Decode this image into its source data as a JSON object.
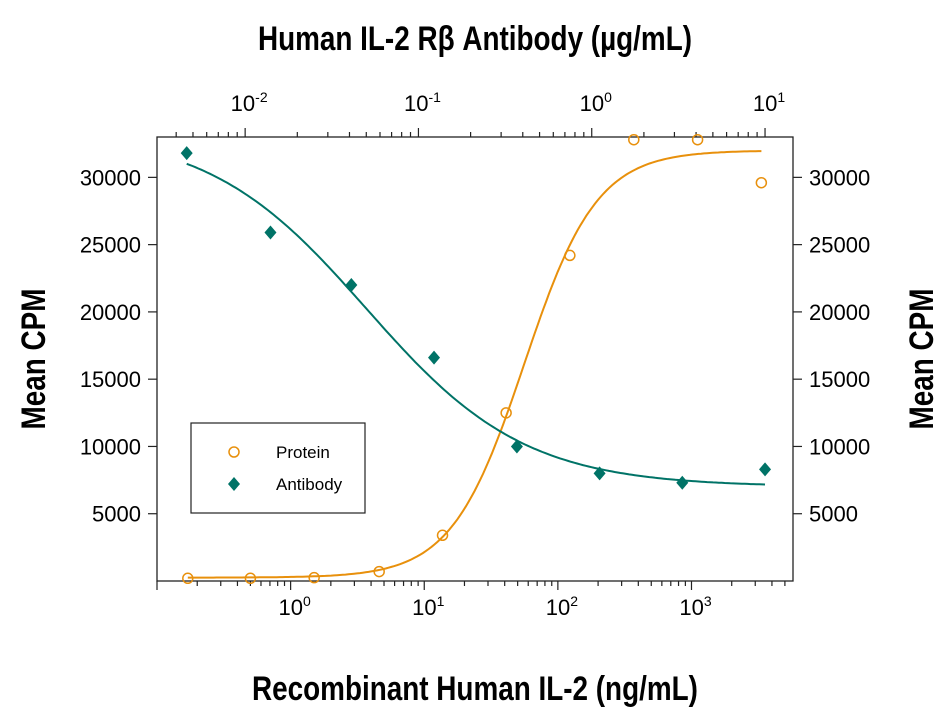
{
  "chart_data": {
    "type": "scatter",
    "title": "Human IL-2 Rβ Antibody (µg/mL)",
    "xlabel": "Recombinant Human IL-2 (ng/mL)",
    "ylabel": "Mean CPM",
    "ylabel_right": "Mean CPM",
    "x_scale": "log",
    "x_top_scale": "log",
    "xlim": [
      0.1,
      5750
    ],
    "x_top_lim": [
      0.0031,
      14.5
    ],
    "ylim": [
      0,
      33000
    ],
    "x_ticks": [
      {
        "base": "10",
        "exp": "0",
        "value": 1
      },
      {
        "base": "10",
        "exp": "1",
        "value": 10
      },
      {
        "base": "10",
        "exp": "2",
        "value": 100
      },
      {
        "base": "10",
        "exp": "3",
        "value": 1000
      }
    ],
    "x_top_ticks": [
      {
        "base": "10",
        "exp": "-2",
        "value": 0.01
      },
      {
        "base": "10",
        "exp": "-1",
        "value": 0.1
      },
      {
        "base": "10",
        "exp": "0",
        "value": 1
      },
      {
        "base": "10",
        "exp": "1",
        "value": 10
      }
    ],
    "y_ticks": [
      "5000",
      "10000",
      "15000",
      "20000",
      "25000",
      "30000"
    ],
    "grid": false,
    "legend": {
      "placement": "bottom-left",
      "entries": [
        "Protein",
        "Antibody"
      ]
    },
    "series": [
      {
        "name": "Protein",
        "axis": "bottom",
        "marker": "open-circle",
        "color": "#E8900C",
        "x": [
          0.17,
          0.5,
          1.5,
          4.6,
          13.7,
          41,
          123,
          370,
          1111,
          3333
        ],
        "y": [
          200,
          200,
          250,
          700,
          3400,
          12500,
          24200,
          32800,
          32800,
          29600
        ],
        "fit": {
          "bottom": 250,
          "top": 32000,
          "ec50": 56,
          "hill": 1.6
        }
      },
      {
        "name": "Antibody",
        "axis": "top",
        "marker": "filled-diamond",
        "color": "#007367",
        "x": [
          0.0046,
          0.014,
          0.041,
          0.123,
          0.37,
          1.11,
          3.33,
          10
        ],
        "y": [
          31800,
          25900,
          22000,
          16600,
          10000,
          8000,
          7300,
          8300
        ],
        "fit": {
          "bottom": 7000,
          "top": 33500,
          "ec50": 0.05,
          "hill": 0.95
        }
      }
    ]
  }
}
